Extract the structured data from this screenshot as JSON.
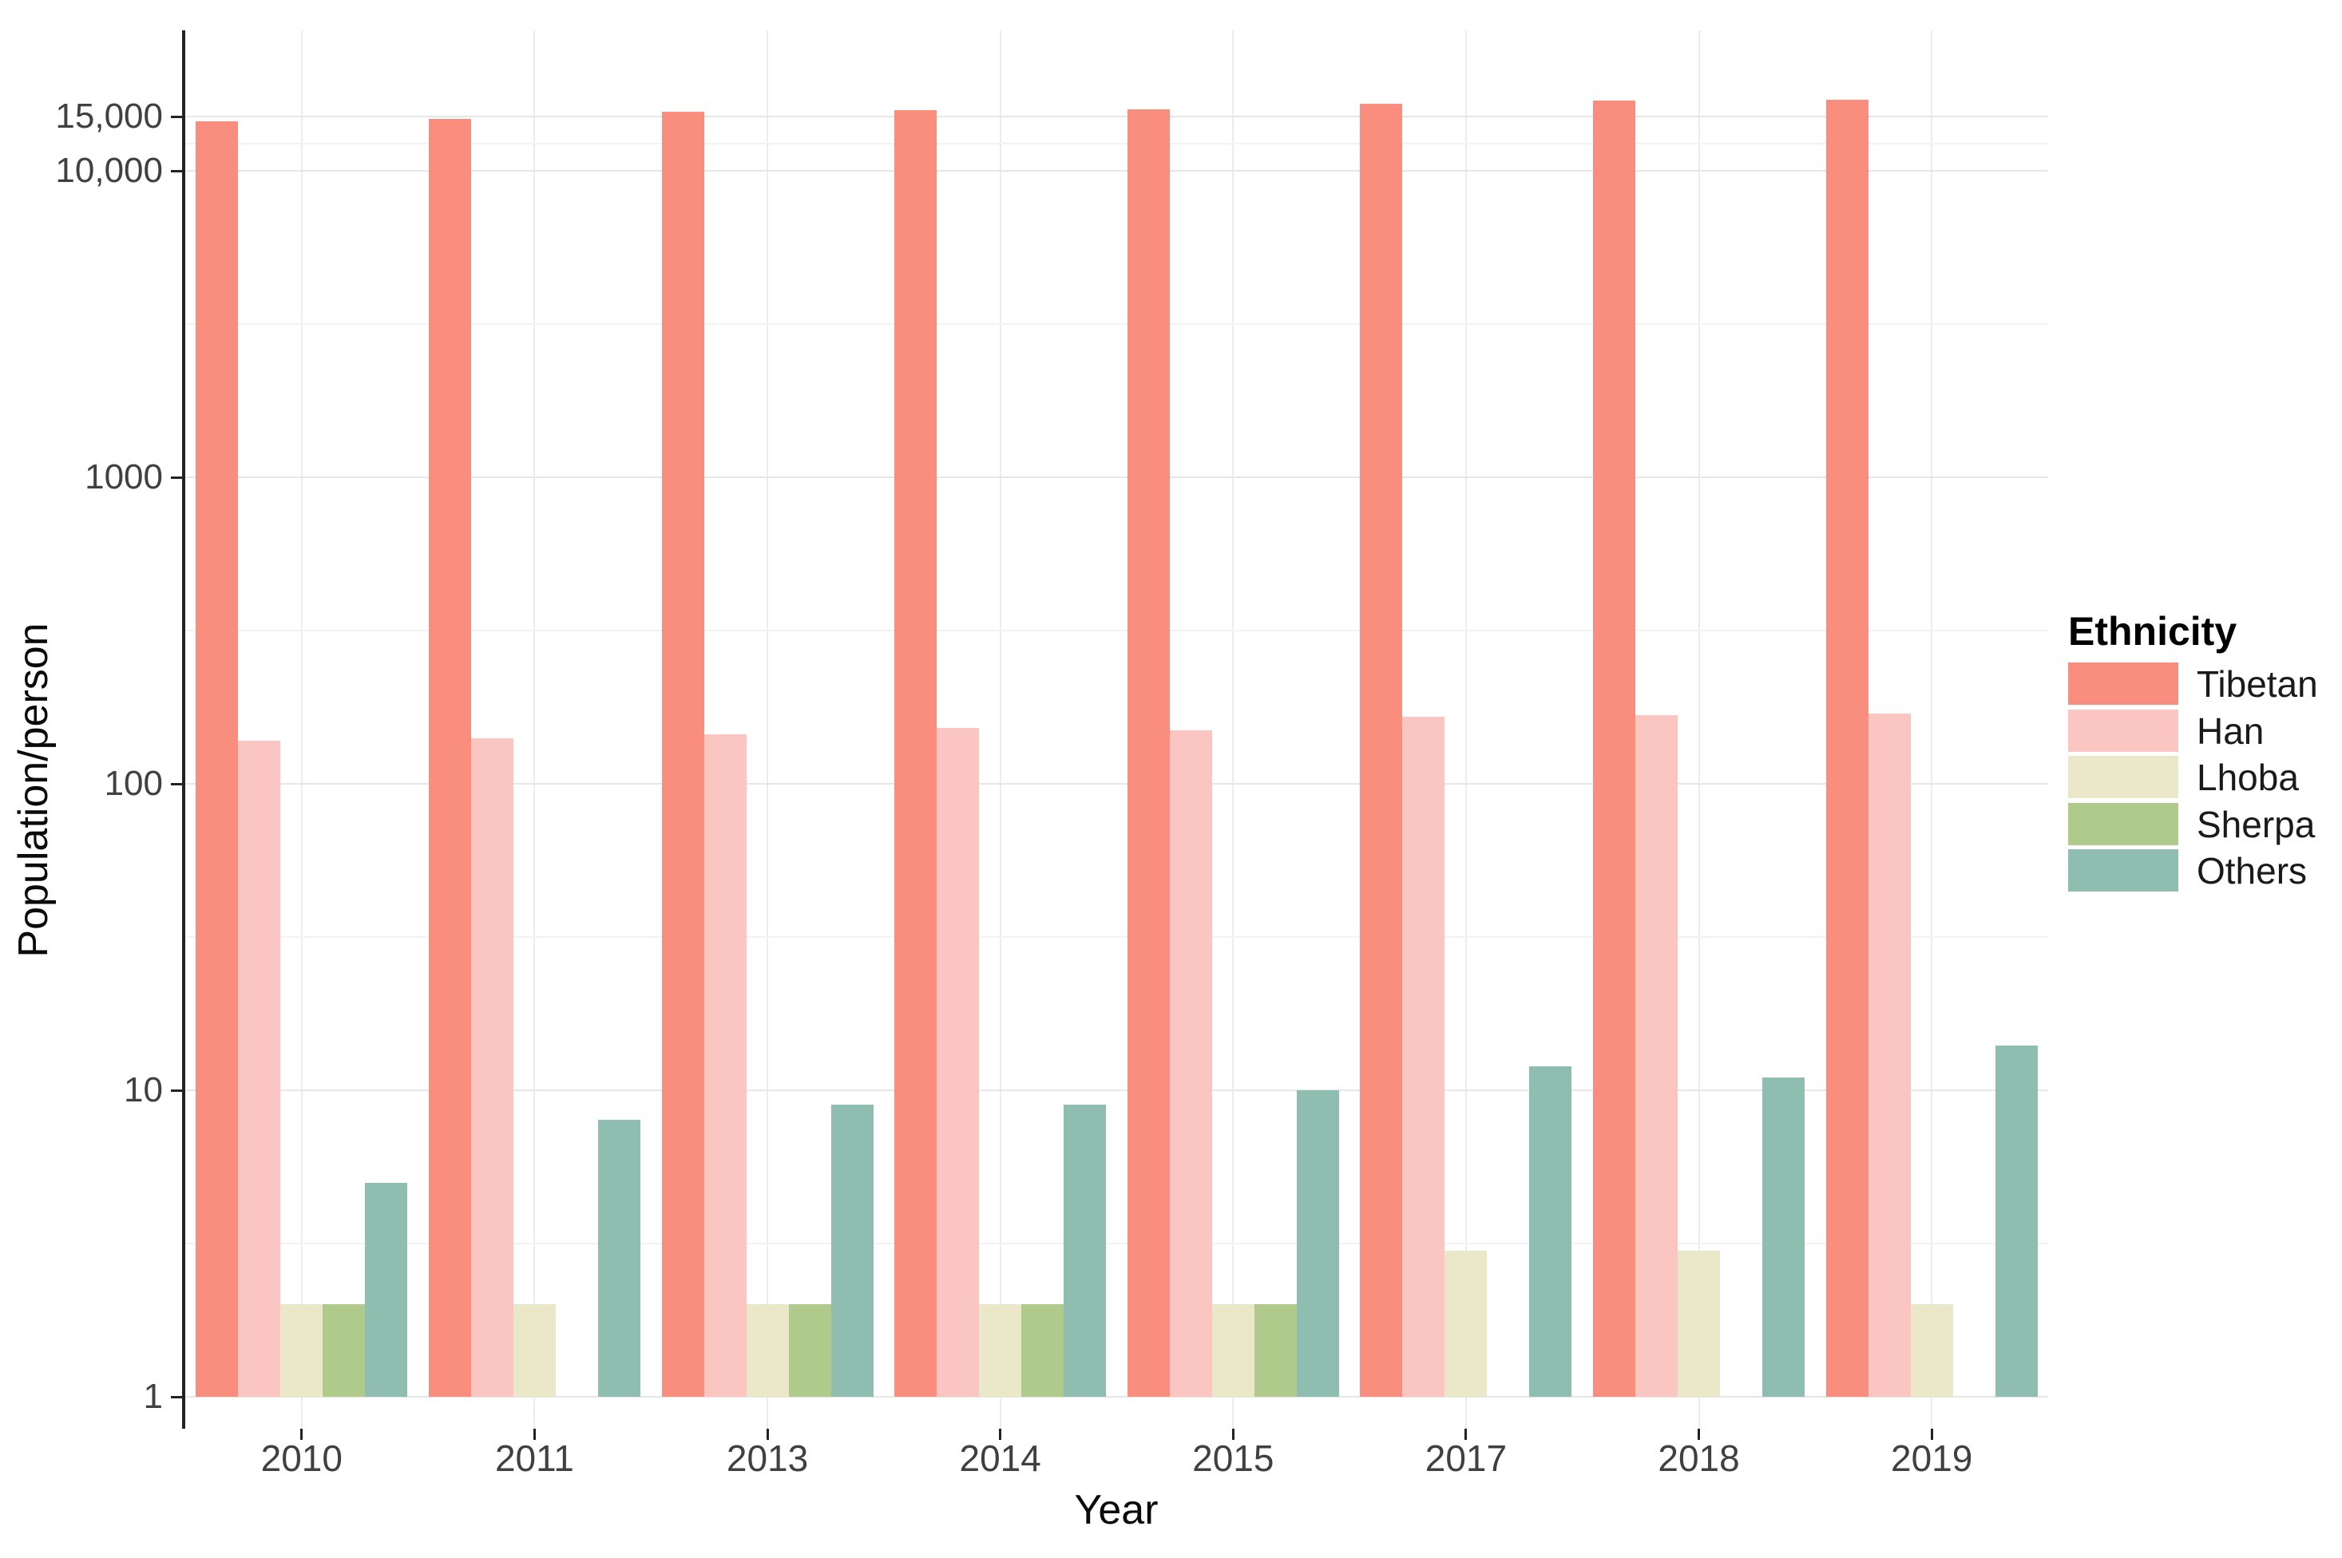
{
  "figure": {
    "background": "#ffffff",
    "axis_color": "#222222",
    "tick_label_color": "#404040",
    "major_grid_color": "#e6e6e6",
    "minor_grid_color": "#f3f3f3",
    "vertical_grid_color": "#ececec"
  },
  "legend": {
    "title": "Ethnicity",
    "items": [
      {
        "label": "Tibetan",
        "color": "#F98D7E"
      },
      {
        "label": "Han",
        "color": "#FBC5C2"
      },
      {
        "label": "Lhoba",
        "color": "#EBE7C9"
      },
      {
        "label": "Sherpa",
        "color": "#AFCA8B"
      },
      {
        "label": "Others",
        "color": "#8FBDB0"
      }
    ]
  },
  "chart_data": {
    "type": "bar",
    "scale": "log10",
    "title": "",
    "xlabel": "Year",
    "ylabel": "Population/person",
    "categories": [
      "2010",
      "2011",
      "2013",
      "2014",
      "2015",
      "2017",
      "2018",
      "2019"
    ],
    "series": [
      {
        "name": "Tibetan",
        "color": "#F98D7E",
        "values": [
          14500,
          14800,
          15600,
          15800,
          15900,
          16500,
          16900,
          17100
        ]
      },
      {
        "name": "Han",
        "color": "#FBC5C2",
        "values": [
          138,
          141,
          145,
          152,
          149,
          165,
          167,
          170
        ]
      },
      {
        "name": "Lhoba",
        "color": "#EBE7C9",
        "values": [
          2,
          2,
          2,
          2,
          2,
          3,
          3,
          2
        ]
      },
      {
        "name": "Sherpa",
        "color": "#AFCA8B",
        "values": [
          2,
          1,
          2,
          2,
          2,
          1,
          1,
          1
        ]
      },
      {
        "name": "Others",
        "color": "#8FBDB0",
        "values": [
          5,
          8,
          9,
          9,
          10,
          12,
          11,
          14
        ]
      }
    ],
    "y_major_ticks": [
      1,
      10,
      100,
      1000,
      10000,
      15000
    ],
    "y_tick_labels": [
      "1",
      "10",
      "100",
      "1000",
      "10,000",
      "15,000"
    ],
    "ylim": [
      1,
      30000
    ],
    "grid": true,
    "legend_position": "right",
    "baseline_value": 1
  }
}
